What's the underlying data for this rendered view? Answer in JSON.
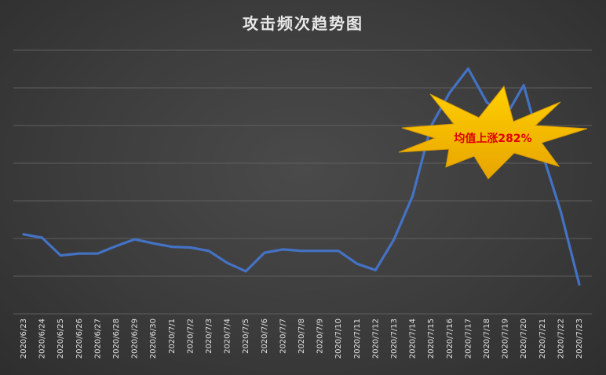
{
  "chart_data": {
    "type": "line",
    "title": "攻击频次趋势图",
    "xlabel": "",
    "ylabel": "",
    "ylim": [
      0,
      7
    ],
    "grid": true,
    "legend": "none",
    "categories": [
      "2020/6/23",
      "2020/6/24",
      "2020/6/25",
      "2020/6/26",
      "2020/6/27",
      "2020/6/28",
      "2020/6/29",
      "2020/6/30",
      "2020/7/1",
      "2020/7/2",
      "2020/7/3",
      "2020/7/4",
      "2020/7/5",
      "2020/7/6",
      "2020/7/7",
      "2020/7/8",
      "2020/7/9",
      "2020/7/10",
      "2020/7/11",
      "2020/7/12",
      "2020/7/13",
      "2020/7/14",
      "2020/7/15",
      "2020/7/16",
      "2020/7/17",
      "2020/7/18",
      "2020/7/19",
      "2020/7/20",
      "2020/7/21",
      "2020/7/22",
      "2020/7/23"
    ],
    "series": [
      {
        "color": "#4472c4",
        "values": [
          2.11,
          2.02,
          1.55,
          1.6,
          1.6,
          1.8,
          1.98,
          1.87,
          1.78,
          1.76,
          1.67,
          1.35,
          1.13,
          1.62,
          1.71,
          1.67,
          1.67,
          1.67,
          1.33,
          1.16,
          1.98,
          3.13,
          4.99,
          5.87,
          6.51,
          5.62,
          5.22,
          6.07,
          4.27,
          2.71,
          0.78
        ]
      }
    ],
    "annotations": [
      {
        "text": "均值上涨282%",
        "shape": "starburst",
        "fill": "#f5b800",
        "text_color": "#e00000"
      }
    ]
  }
}
